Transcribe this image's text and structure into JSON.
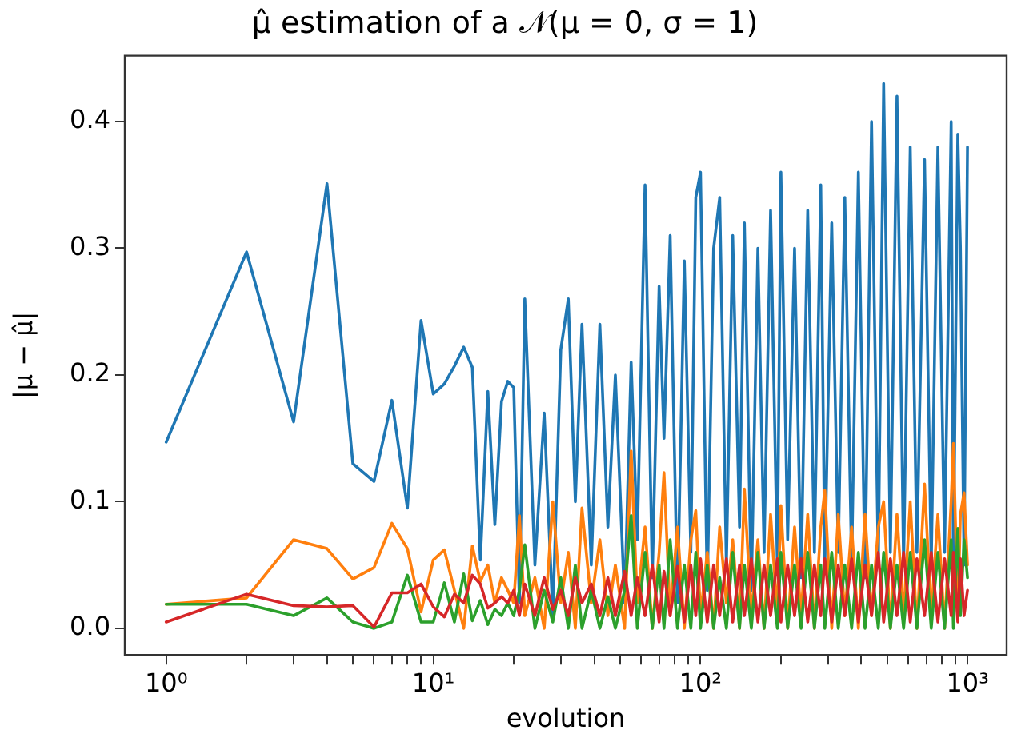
{
  "chart_data": {
    "type": "line",
    "title": "μ̂ estimation of a 𝒩(μ = 0, σ = 1)",
    "xlabel": "evolution",
    "ylabel": "|μ − μ̂|",
    "log": "x",
    "grid": false,
    "legend": false,
    "marker": "none",
    "line_style": "solid",
    "xlim": [
      0.71,
      1400
    ],
    "ylim": [
      -0.021,
      0.452
    ],
    "xticks": [
      {
        "value": 1,
        "label": "10⁰"
      },
      {
        "value": 2,
        "label": null
      },
      {
        "value": 3,
        "label": null
      },
      {
        "value": 4,
        "label": null
      },
      {
        "value": 5,
        "label": null
      },
      {
        "value": 6,
        "label": null
      },
      {
        "value": 7,
        "label": null
      },
      {
        "value": 8,
        "label": null
      },
      {
        "value": 9,
        "label": null
      },
      {
        "value": 10,
        "label": "10¹"
      },
      {
        "value": 20,
        "label": null
      },
      {
        "value": 30,
        "label": null
      },
      {
        "value": 40,
        "label": null
      },
      {
        "value": 50,
        "label": null
      },
      {
        "value": 60,
        "label": null
      },
      {
        "value": 70,
        "label": null
      },
      {
        "value": 80,
        "label": null
      },
      {
        "value": 90,
        "label": null
      },
      {
        "value": 100,
        "label": "10²"
      },
      {
        "value": 200,
        "label": null
      },
      {
        "value": 300,
        "label": null
      },
      {
        "value": 400,
        "label": null
      },
      {
        "value": 500,
        "label": null
      },
      {
        "value": 600,
        "label": null
      },
      {
        "value": 700,
        "label": null
      },
      {
        "value": 800,
        "label": null
      },
      {
        "value": 900,
        "label": null
      },
      {
        "value": 1000,
        "label": "10³"
      }
    ],
    "yticks": [
      {
        "value": 0,
        "label": "0.0"
      },
      {
        "value": 0.1,
        "label": "0.1"
      },
      {
        "value": 0.2,
        "label": "0.2"
      },
      {
        "value": 0.3,
        "label": "0.3"
      },
      {
        "value": 0.4,
        "label": "0.4"
      }
    ],
    "x": [
      1,
      2,
      3,
      4,
      5,
      6,
      7,
      8,
      9,
      10,
      11,
      12,
      13,
      14,
      15,
      16,
      17,
      18,
      19,
      20,
      21,
      22,
      24,
      26,
      28,
      30,
      32,
      34,
      36,
      39,
      42,
      45,
      48,
      52,
      55,
      58,
      62,
      66,
      70,
      73,
      77,
      82,
      87,
      92,
      96,
      100,
      106,
      112,
      118,
      125,
      132,
      140,
      146,
      155,
      164,
      173,
      183,
      194,
      200,
      212,
      225,
      238,
      252,
      267,
      282,
      292,
      310,
      328,
      347,
      368,
      390,
      413,
      437,
      463,
      485,
      514,
      544,
      576,
      610,
      646,
      690,
      731,
      774,
      820,
      868,
      885,
      919,
      940,
      970,
      999
    ],
    "series": [
      {
        "color": "#1f77b4",
        "values": [
          0.147,
          0.297,
          0.163,
          0.351,
          0.13,
          0.116,
          0.18,
          0.095,
          0.243,
          0.185,
          0.193,
          0.207,
          0.222,
          0.206,
          0.054,
          0.187,
          0.082,
          0.179,
          0.195,
          0.19,
          0.02,
          0.26,
          0.05,
          0.17,
          0.01,
          0.22,
          0.26,
          0.1,
          0.24,
          0.05,
          0.24,
          0.08,
          0.2,
          0.02,
          0.21,
          0.07,
          0.35,
          0.04,
          0.27,
          0.15,
          0.31,
          0.02,
          0.29,
          0.06,
          0.34,
          0.36,
          0.03,
          0.3,
          0.34,
          0.05,
          0.31,
          0.08,
          0.32,
          0.03,
          0.3,
          0.06,
          0.33,
          0.05,
          0.36,
          0.07,
          0.3,
          0.04,
          0.33,
          0.06,
          0.35,
          0.05,
          0.32,
          0.06,
          0.34,
          0.05,
          0.36,
          0.04,
          0.4,
          0.05,
          0.43,
          0.06,
          0.42,
          0.05,
          0.38,
          0.06,
          0.37,
          0.05,
          0.38,
          0.06,
          0.4,
          0.05,
          0.39,
          0.3,
          0.05,
          0.38
        ]
      },
      {
        "color": "#ff7f0e",
        "values": [
          0.019,
          0.024,
          0.07,
          0.063,
          0.039,
          0.048,
          0.083,
          0.063,
          0.013,
          0.054,
          0.062,
          0.03,
          0.0,
          0.065,
          0.037,
          0.05,
          0.02,
          0.04,
          0.03,
          0.02,
          0.089,
          0.01,
          0.04,
          0.0,
          0.1,
          0.02,
          0.06,
          0.0,
          0.095,
          0.02,
          0.07,
          0.01,
          0.05,
          0.0,
          0.14,
          0.02,
          0.08,
          0.0,
          0.06,
          0.123,
          0.01,
          0.08,
          0.0,
          0.07,
          0.093,
          0.01,
          0.06,
          0.0,
          0.08,
          0.02,
          0.07,
          0.0,
          0.11,
          0.01,
          0.07,
          0.0,
          0.09,
          0.01,
          0.097,
          0.0,
          0.08,
          0.01,
          0.09,
          0.0,
          0.08,
          0.109,
          0.0,
          0.09,
          0.01,
          0.08,
          0.0,
          0.09,
          0.01,
          0.08,
          0.1,
          0.0,
          0.09,
          0.01,
          0.1,
          0.0,
          0.114,
          0.01,
          0.09,
          0.0,
          0.1,
          0.146,
          0.01,
          0.09,
          0.107,
          0.05
        ]
      },
      {
        "color": "#2ca02c",
        "values": [
          0.019,
          0.019,
          0.01,
          0.024,
          0.005,
          0.0,
          0.005,
          0.042,
          0.005,
          0.005,
          0.036,
          0.005,
          0.043,
          0.006,
          0.022,
          0.003,
          0.015,
          0.01,
          0.02,
          0.01,
          0.03,
          0.066,
          0.0,
          0.03,
          0.005,
          0.04,
          0.0,
          0.05,
          0.0,
          0.03,
          0.0,
          0.025,
          0.0,
          0.03,
          0.089,
          0.0,
          0.06,
          0.0,
          0.05,
          0.0,
          0.07,
          0.0,
          0.05,
          0.0,
          0.06,
          0.0,
          0.05,
          0.0,
          0.04,
          0.0,
          0.06,
          0.0,
          0.05,
          0.0,
          0.06,
          0.0,
          0.05,
          0.0,
          0.06,
          0.0,
          0.05,
          0.0,
          0.06,
          0.0,
          0.05,
          0.0,
          0.06,
          0.0,
          0.05,
          0.0,
          0.06,
          0.0,
          0.05,
          0.0,
          0.06,
          0.0,
          0.05,
          0.0,
          0.06,
          0.0,
          0.07,
          0.0,
          0.06,
          0.0,
          0.07,
          0.0,
          0.079,
          0.01,
          0.07,
          0.04
        ]
      },
      {
        "color": "#d62728",
        "values": [
          0.005,
          0.027,
          0.018,
          0.017,
          0.018,
          0.001,
          0.028,
          0.028,
          0.035,
          0.017,
          0.009,
          0.027,
          0.02,
          0.042,
          0.035,
          0.016,
          0.02,
          0.025,
          0.02,
          0.03,
          0.01,
          0.035,
          0.01,
          0.04,
          0.015,
          0.03,
          0.01,
          0.04,
          0.02,
          0.035,
          0.01,
          0.04,
          0.01,
          0.045,
          0.01,
          0.04,
          0.01,
          0.05,
          0.005,
          0.045,
          0.01,
          0.049,
          0.005,
          0.05,
          0.01,
          0.055,
          0.005,
          0.05,
          0.01,
          0.055,
          0.005,
          0.05,
          0.01,
          0.055,
          0.005,
          0.05,
          0.01,
          0.055,
          0.005,
          0.05,
          0.01,
          0.055,
          0.005,
          0.05,
          0.01,
          0.055,
          0.005,
          0.05,
          0.01,
          0.055,
          0.005,
          0.05,
          0.01,
          0.06,
          0.005,
          0.055,
          0.01,
          0.06,
          0.005,
          0.055,
          0.01,
          0.06,
          0.005,
          0.055,
          0.01,
          0.06,
          0.005,
          0.055,
          0.01,
          0.03
        ]
      }
    ]
  }
}
